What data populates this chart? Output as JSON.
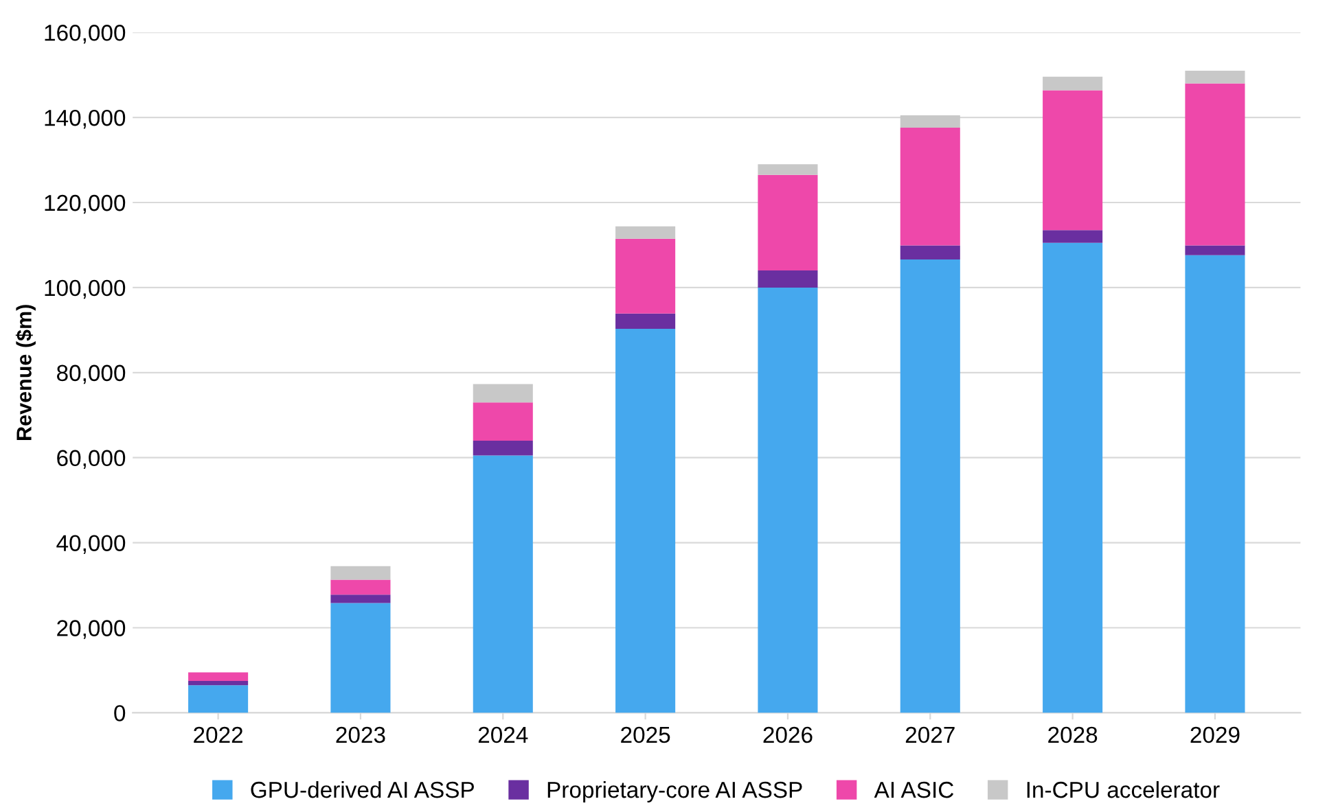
{
  "chart_data": {
    "type": "bar",
    "stacked": true,
    "ylabel": "Revenue ($m)",
    "categories": [
      "2022",
      "2023",
      "2024",
      "2025",
      "2026",
      "2027",
      "2028",
      "2029"
    ],
    "series": [
      {
        "name": "GPU-derived AI ASSP",
        "color": "#45a8ee",
        "values": [
          6500,
          25800,
          60500,
          90300,
          100000,
          106600,
          110500,
          107600
        ]
      },
      {
        "name": "Proprietary-core AI ASSP",
        "color": "#6a2fa0",
        "values": [
          1000,
          2000,
          3500,
          3600,
          4000,
          3300,
          3000,
          2300
        ]
      },
      {
        "name": "AI ASIC",
        "color": "#ee48aa",
        "values": [
          2000,
          3500,
          9000,
          17600,
          22500,
          27700,
          32900,
          38100
        ]
      },
      {
        "name": "In-CPU accelerator",
        "color": "#c8c8c8",
        "values": [
          0,
          3200,
          4300,
          2900,
          2500,
          2900,
          3200,
          3000
        ]
      }
    ],
    "ylim": [
      0,
      160000
    ],
    "yticks": [
      {
        "value": 0,
        "label": "0"
      },
      {
        "value": 20000,
        "label": "20,000"
      },
      {
        "value": 40000,
        "label": "40,000"
      },
      {
        "value": 60000,
        "label": "60,000"
      },
      {
        "value": 80000,
        "label": "80,000"
      },
      {
        "value": 100000,
        "label": "100,000"
      },
      {
        "value": 120000,
        "label": "120,000"
      },
      {
        "value": 140000,
        "label": "140,000"
      },
      {
        "value": 160000,
        "label": "160,000"
      }
    ],
    "grid": "y",
    "legend": "bottom"
  }
}
